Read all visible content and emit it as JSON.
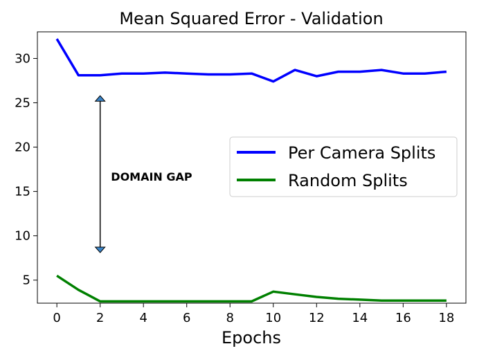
{
  "chart_data": {
    "type": "line",
    "title": "Mean Squared Error - Validation",
    "xlabel": "Epochs",
    "ylabel": "",
    "xlim": [
      -0.9,
      18.9
    ],
    "ylim": [
      2.4,
      33.0
    ],
    "xticks": [
      0,
      2,
      4,
      6,
      8,
      10,
      12,
      14,
      16,
      18
    ],
    "yticks": [
      5,
      10,
      15,
      20,
      25,
      30
    ],
    "grid": false,
    "legend_position": "center-right",
    "x": [
      0,
      1,
      2,
      3,
      4,
      5,
      6,
      7,
      8,
      9,
      10,
      11,
      12,
      13,
      14,
      15,
      16,
      17,
      18
    ],
    "series": [
      {
        "name": "Per Camera Splits",
        "color": "#0000ff",
        "values": [
          32.2,
          28.1,
          28.1,
          28.3,
          28.3,
          28.4,
          28.3,
          28.2,
          28.2,
          28.3,
          27.4,
          28.7,
          28.0,
          28.5,
          28.5,
          28.7,
          28.3,
          28.3,
          28.5
        ]
      },
      {
        "name": "Random Splits",
        "color": "#008000",
        "values": [
          5.5,
          3.9,
          2.6,
          2.6,
          2.6,
          2.6,
          2.6,
          2.6,
          2.6,
          2.6,
          3.7,
          3.4,
          3.1,
          2.9,
          2.8,
          2.7,
          2.7,
          2.7,
          2.7
        ]
      }
    ],
    "annotation": {
      "text": "DOMAIN GAP",
      "arrow_x": 2,
      "arrow_y_top": 25.8,
      "arrow_y_bottom": 8.1,
      "text_x": 2.5,
      "text_y": 16.7,
      "arrow_head_color": "#3a84c8"
    }
  }
}
